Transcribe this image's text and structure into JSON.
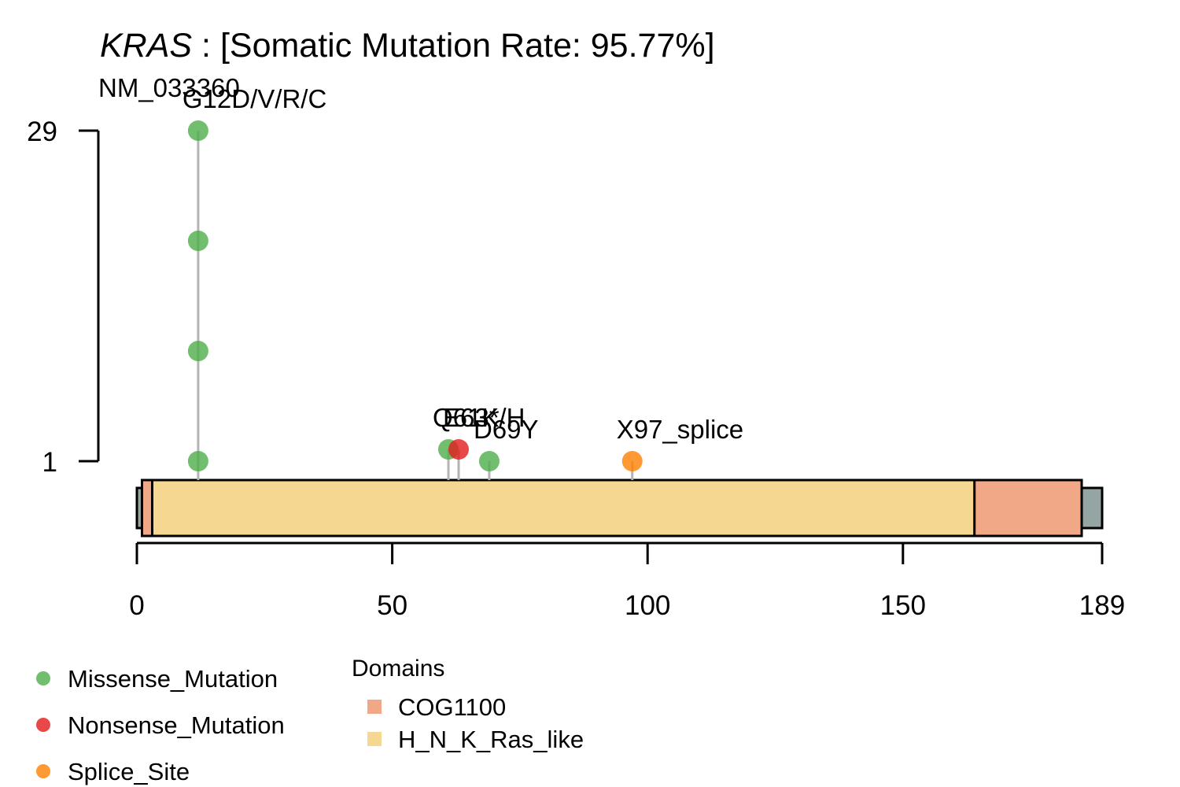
{
  "title": {
    "gene": "KRAS",
    "rest": " : [Somatic Mutation Rate: 95.77%]"
  },
  "transcript": "NM_033360",
  "colors": {
    "missense": "#4DAF4A",
    "nonsense": "#E41A1C",
    "splice": "#FF7F00",
    "cog1100": "#F1A887",
    "h_n_k_ras_like": "#F5D792",
    "protein_body": "#95A5A3",
    "lollipop_stick": "#B3B3B3"
  },
  "chart_data": {
    "type": "lollipop",
    "protein_length": 189,
    "x_ticks": [
      0,
      50,
      100,
      150,
      189
    ],
    "x_tick_labels": [
      "0",
      "50",
      "100",
      "150",
      "189"
    ],
    "y_ticks": [
      1,
      29
    ],
    "y_tick_labels": [
      "1",
      "29"
    ],
    "domains": [
      {
        "name": "COG1100",
        "start": 1,
        "end": 185,
        "color": "#F1A887"
      },
      {
        "name": "H_N_K_Ras_like",
        "start": 3,
        "end": 164,
        "color": "#F5D792"
      }
    ],
    "mutations": [
      {
        "label": "G12D/V/R/C",
        "pos": 12,
        "count": 29,
        "type": "Missense_Mutation",
        "stacked_points": 4
      },
      {
        "label": "Q61K/H",
        "pos": 61,
        "count": 2,
        "type": "Missense_Mutation",
        "stacked_points": 1
      },
      {
        "label": "E63*",
        "pos": 63,
        "count": 2,
        "type": "Nonsense_Mutation",
        "stacked_points": 1
      },
      {
        "label": "D69Y",
        "pos": 69,
        "count": 1,
        "type": "Missense_Mutation",
        "stacked_points": 1
      },
      {
        "label": "X97_splice",
        "pos": 97,
        "count": 1,
        "type": "Splice_Site",
        "stacked_points": 1
      }
    ],
    "legend_variants": [
      {
        "label": "Missense_Mutation",
        "color": "#4DAF4A"
      },
      {
        "label": "Nonsense_Mutation",
        "color": "#E41A1C"
      },
      {
        "label": "Splice_Site",
        "color": "#FF7F00"
      }
    ],
    "legend_domains_title": "Domains",
    "legend_domains": [
      {
        "label": "COG1100",
        "color": "#F1A887"
      },
      {
        "label": "H_N_K_Ras_like",
        "color": "#F5D792"
      }
    ]
  }
}
